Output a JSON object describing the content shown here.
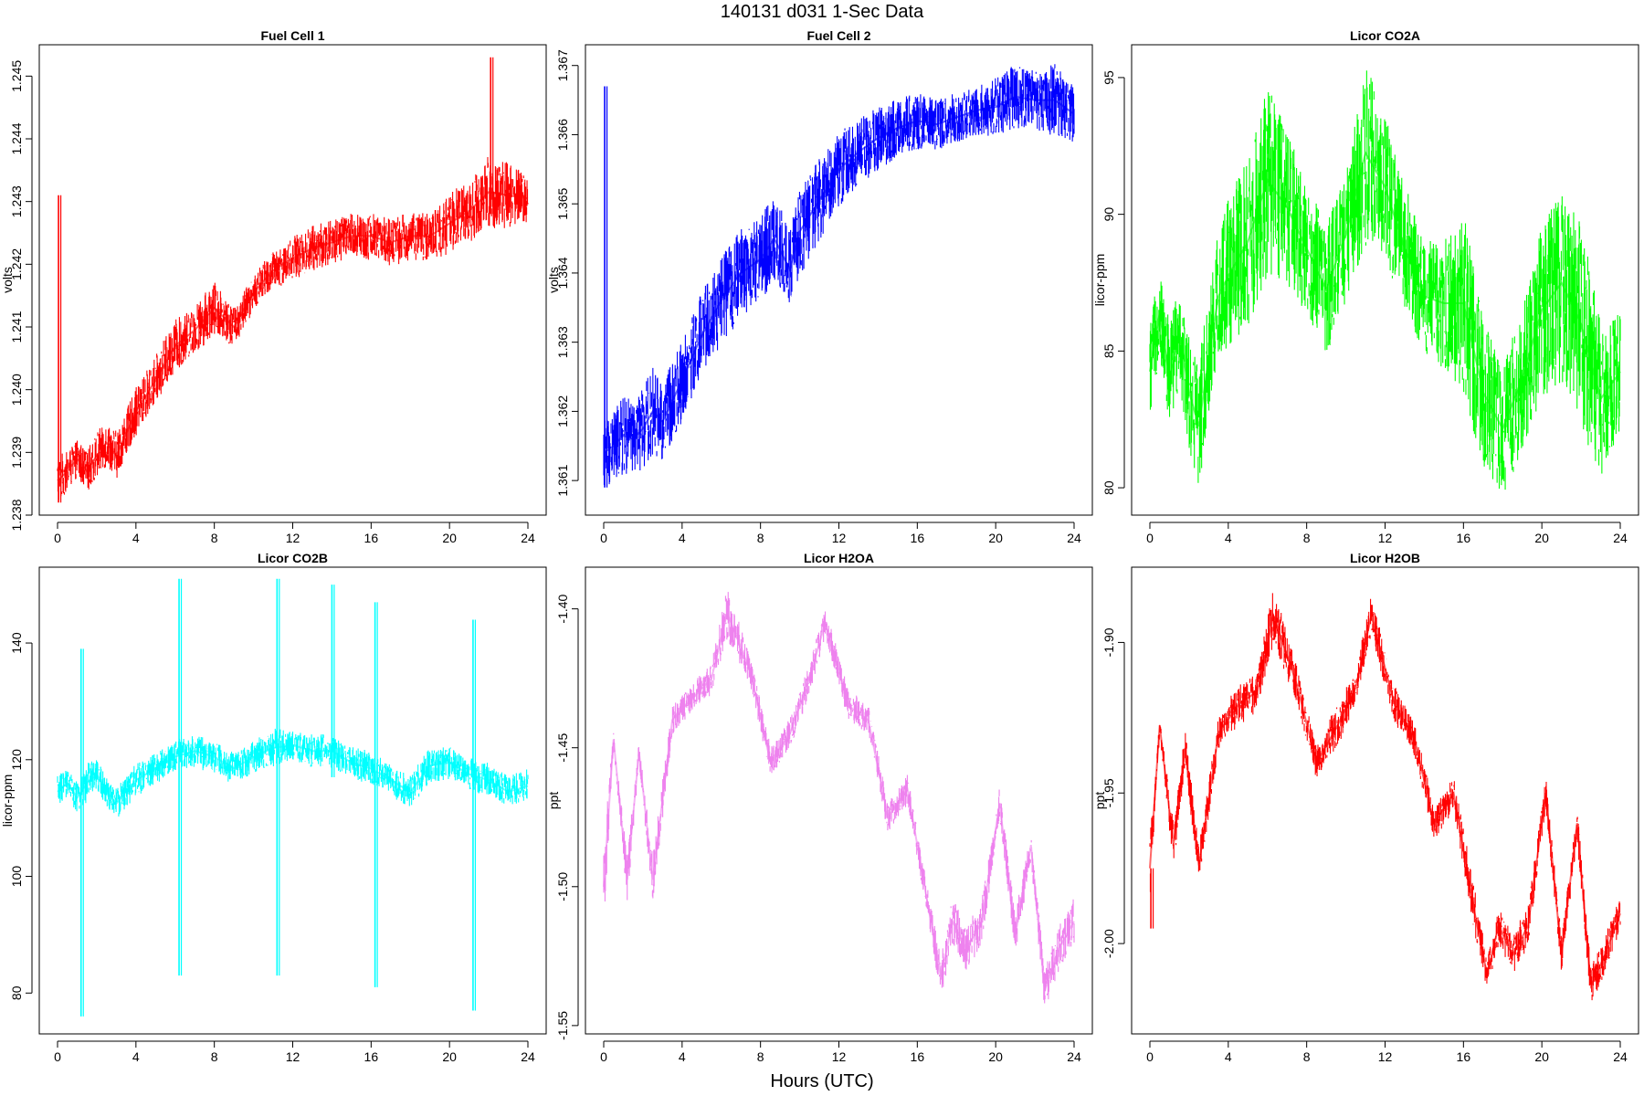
{
  "figure": {
    "title": "140131   d031   1-Sec Data",
    "xlabel": "Hours (UTC)"
  },
  "chart_data": [
    {
      "type": "line",
      "title": "Fuel Cell 1",
      "ylabel": "volts",
      "color": "#ff0000",
      "xlim": [
        0,
        24
      ],
      "ylim": [
        1.238,
        1.2455
      ],
      "xticks": [
        0,
        4,
        8,
        12,
        16,
        20,
        24
      ],
      "xtick_labels": [
        "0",
        "4",
        "8",
        "12",
        "16",
        "20",
        "24"
      ],
      "yticks": [
        1.238,
        1.239,
        1.24,
        1.241,
        1.242,
        1.243,
        1.244,
        1.245
      ],
      "ytick_labels": [
        "1.238",
        "1.239",
        "1.240",
        "1.241",
        "1.242",
        "1.243",
        "1.244",
        "1.245"
      ],
      "series": [
        {
          "x": [
            0,
            0.5,
            1,
            1.5,
            2,
            2.5,
            3,
            4,
            5,
            6,
            7,
            8,
            9,
            10,
            11,
            12,
            13,
            14,
            15,
            16,
            17,
            18,
            19,
            20,
            21,
            22,
            23,
            24
          ],
          "low": [
            1.2382,
            1.2384,
            1.2386,
            1.2384,
            1.2386,
            1.2388,
            1.2386,
            1.2393,
            1.2398,
            1.2403,
            1.2406,
            1.2409,
            1.2407,
            1.2413,
            1.2416,
            1.2418,
            1.2419,
            1.242,
            1.2421,
            1.2421,
            1.242,
            1.2421,
            1.2421,
            1.2422,
            1.2424,
            1.2426,
            1.2426,
            1.2427
          ],
          "high": [
            1.2389,
            1.239,
            1.2392,
            1.239,
            1.2393,
            1.2395,
            1.2393,
            1.24,
            1.2405,
            1.2411,
            1.2413,
            1.2417,
            1.2413,
            1.2418,
            1.2422,
            1.2424,
            1.2426,
            1.2427,
            1.2428,
            1.2428,
            1.2427,
            1.2428,
            1.2428,
            1.2431,
            1.2433,
            1.2437,
            1.2436,
            1.2434
          ]
        }
      ],
      "spikes": [
        {
          "x": 0.05,
          "low": 1.2382,
          "high": 1.2431
        },
        {
          "x": 22.1,
          "low": 1.2428,
          "high": 1.2453
        }
      ]
    },
    {
      "type": "line",
      "title": "Fuel Cell 2",
      "ylabel": "volts",
      "color": "#0000ff",
      "xlim": [
        0,
        24
      ],
      "ylim": [
        1.3605,
        1.3673
      ],
      "xticks": [
        0,
        4,
        8,
        12,
        16,
        20,
        24
      ],
      "xtick_labels": [
        "0",
        "4",
        "8",
        "12",
        "16",
        "20",
        "24"
      ],
      "yticks": [
        1.361,
        1.362,
        1.363,
        1.364,
        1.365,
        1.366,
        1.367
      ],
      "ytick_labels": [
        "1.361",
        "1.362",
        "1.363",
        "1.364",
        "1.365",
        "1.366",
        "1.367"
      ],
      "series": [
        {
          "x": [
            0,
            0.5,
            1,
            1.5,
            2,
            2.5,
            3,
            4,
            5,
            6,
            7,
            8,
            8.7,
            9.5,
            10,
            11,
            12,
            13,
            14,
            15,
            16,
            17,
            18,
            19,
            20,
            21,
            22,
            23,
            24
          ],
          "low": [
            1.3609,
            1.361,
            1.3611,
            1.3611,
            1.3612,
            1.3614,
            1.3613,
            1.3619,
            1.3625,
            1.363,
            1.3634,
            1.3636,
            1.3639,
            1.3635,
            1.364,
            1.3645,
            1.365,
            1.3653,
            1.3655,
            1.3657,
            1.3658,
            1.3658,
            1.3659,
            1.366,
            1.366,
            1.3661,
            1.3661,
            1.366,
            1.3659
          ],
          "high": [
            1.3619,
            1.362,
            1.3622,
            1.3621,
            1.3623,
            1.3626,
            1.3624,
            1.363,
            1.3637,
            1.3642,
            1.3646,
            1.3648,
            1.3651,
            1.3646,
            1.3652,
            1.3656,
            1.366,
            1.3662,
            1.3664,
            1.3665,
            1.3666,
            1.3665,
            1.3666,
            1.3667,
            1.3668,
            1.367,
            1.3669,
            1.367,
            1.3667
          ]
        }
      ],
      "spikes": [
        {
          "x": 0.05,
          "low": 1.3609,
          "high": 1.3667
        }
      ]
    },
    {
      "type": "line",
      "title": "Licor CO2A",
      "ylabel": "licor-ppm",
      "color": "#00ff00",
      "xlim": [
        0,
        24
      ],
      "ylim": [
        79,
        96.2
      ],
      "xticks": [
        0,
        4,
        8,
        12,
        16,
        20,
        24
      ],
      "xtick_labels": [
        "0",
        "4",
        "8",
        "12",
        "16",
        "20",
        "24"
      ],
      "yticks": [
        80,
        85,
        90,
        95
      ],
      "ytick_labels": [
        "80",
        "85",
        "90",
        "95"
      ],
      "series": [
        {
          "x": [
            0,
            0.5,
            1,
            1.5,
            2,
            2.5,
            3,
            3.5,
            4,
            5,
            6,
            7,
            8,
            9,
            10,
            11,
            12,
            13,
            14,
            15,
            16,
            17,
            18,
            19,
            20,
            21,
            22,
            23,
            24
          ],
          "low": [
            82.5,
            85.0,
            82.0,
            84.0,
            81.5,
            80.0,
            82.5,
            84.5,
            85.0,
            86.0,
            88.0,
            87.5,
            86.5,
            85.0,
            87.0,
            89.0,
            88.5,
            86.5,
            85.0,
            84.5,
            83.5,
            81.0,
            79.8,
            81.5,
            83.5,
            84.0,
            82.5,
            80.5,
            82.0
          ],
          "high": [
            86.0,
            87.8,
            86.0,
            87.5,
            85.5,
            84.5,
            87.0,
            89.5,
            90.5,
            92.0,
            94.5,
            93.0,
            91.0,
            89.5,
            91.5,
            95.5,
            93.5,
            91.0,
            89.0,
            89.0,
            90.0,
            86.0,
            84.5,
            86.5,
            89.5,
            91.0,
            89.5,
            86.0,
            86.5
          ]
        }
      ],
      "spikes": []
    },
    {
      "type": "line",
      "title": "Licor CO2B",
      "ylabel": "licor-ppm",
      "color": "#00ffff",
      "xlim": [
        0,
        24
      ],
      "ylim": [
        73,
        153
      ],
      "xticks": [
        0,
        4,
        8,
        12,
        16,
        20,
        24
      ],
      "xtick_labels": [
        "0",
        "4",
        "8",
        "12",
        "16",
        "20",
        "24"
      ],
      "yticks": [
        80,
        100,
        120,
        140
      ],
      "ytick_labels": [
        "80",
        "100",
        "120",
        "140"
      ],
      "series": [
        {
          "x": [
            0,
            0.5,
            1,
            1.5,
            2,
            2.5,
            3,
            4,
            5,
            6,
            7,
            8,
            9,
            10,
            11,
            12,
            13,
            14,
            15,
            16,
            17,
            18,
            19,
            20,
            21,
            22,
            23,
            24
          ],
          "low": [
            112,
            114,
            111,
            113,
            115,
            112,
            110,
            114,
            116,
            118,
            119,
            118,
            116,
            118,
            119,
            120,
            119,
            119,
            117,
            116,
            114,
            112,
            116,
            117,
            115,
            114,
            112,
            113
          ],
          "high": [
            117,
            118,
            116,
            119,
            120,
            117,
            115,
            119,
            121,
            123,
            124,
            123,
            121,
            123,
            125,
            125,
            124,
            124,
            122,
            121,
            119,
            117,
            122,
            122,
            120,
            119,
            117,
            118
          ]
        }
      ],
      "spikes": [
        {
          "x": 1.2,
          "low": 76,
          "high": 139
        },
        {
          "x": 6.2,
          "low": 83,
          "high": 151
        },
        {
          "x": 11.2,
          "low": 83,
          "high": 151
        },
        {
          "x": 14.0,
          "low": 117,
          "high": 150
        },
        {
          "x": 16.2,
          "low": 81,
          "high": 147
        },
        {
          "x": 21.2,
          "low": 77,
          "high": 144
        }
      ]
    },
    {
      "type": "line",
      "title": "Licor H2OA",
      "ylabel": "ppt",
      "color": "#ee82ee",
      "xlim": [
        0,
        24
      ],
      "ylim": [
        -1.553,
        -1.385
      ],
      "xticks": [
        0,
        4,
        8,
        12,
        16,
        20,
        24
      ],
      "xtick_labels": [
        "0",
        "4",
        "8",
        "12",
        "16",
        "20",
        "24"
      ],
      "yticks": [
        -1.55,
        -1.5,
        -1.45,
        -1.4
      ],
      "ytick_labels": [
        "-1.55",
        "-1.50",
        "-1.45",
        "-1.40"
      ],
      "series": [
        {
          "x": [
            0,
            0.5,
            1.2,
            1.8,
            2.5,
            3.5,
            4.5,
            5.5,
            6.3,
            7.5,
            8.5,
            9.5,
            10.5,
            11.3,
            12.5,
            13.5,
            14.5,
            15.5,
            16.5,
            17.2,
            17.8,
            18.5,
            19.3,
            20.2,
            21,
            21.8,
            22.5,
            23.2,
            24
          ],
          "low": [
            -1.515,
            -1.45,
            -1.505,
            -1.455,
            -1.505,
            -1.445,
            -1.437,
            -1.43,
            -1.41,
            -1.428,
            -1.46,
            -1.45,
            -1.43,
            -1.41,
            -1.44,
            -1.445,
            -1.48,
            -1.47,
            -1.51,
            -1.54,
            -1.52,
            -1.53,
            -1.52,
            -1.475,
            -1.525,
            -1.49,
            -1.545,
            -1.53,
            -1.52
          ],
          "high": [
            -1.485,
            -1.444,
            -1.49,
            -1.448,
            -1.49,
            -1.435,
            -1.428,
            -1.42,
            -1.393,
            -1.418,
            -1.45,
            -1.44,
            -1.42,
            -1.4,
            -1.43,
            -1.435,
            -1.47,
            -1.46,
            -1.5,
            -1.525,
            -1.505,
            -1.515,
            -1.505,
            -1.465,
            -1.51,
            -1.48,
            -1.53,
            -1.515,
            -1.505
          ]
        }
      ],
      "spikes": []
    },
    {
      "type": "line",
      "title": "Licor H2OB",
      "ylabel": "ppt",
      "color": "#ff0000",
      "xlim": [
        0,
        24
      ],
      "ylim": [
        -2.03,
        -1.875
      ],
      "xticks": [
        0,
        4,
        8,
        12,
        16,
        20,
        24
      ],
      "xtick_labels": [
        "0",
        "4",
        "8",
        "12",
        "16",
        "20",
        "24"
      ],
      "yticks": [
        -2.0,
        -1.95,
        -1.9
      ],
      "ytick_labels": [
        "-2.00",
        "-1.95",
        "-1.90"
      ],
      "series": [
        {
          "x": [
            0,
            0.5,
            1.2,
            1.8,
            2.5,
            3.5,
            4.5,
            5.5,
            6.3,
            7.5,
            8.5,
            9.5,
            10.5,
            11.3,
            12.5,
            13.5,
            14.5,
            15.5,
            16.5,
            17.2,
            17.8,
            18.5,
            19.3,
            20.2,
            21,
            21.8,
            22.5,
            23.2,
            24
          ],
          "low": [
            -1.985,
            -1.93,
            -1.975,
            -1.94,
            -1.98,
            -1.935,
            -1.927,
            -1.922,
            -1.9,
            -1.92,
            -1.945,
            -1.935,
            -1.92,
            -1.897,
            -1.927,
            -1.937,
            -1.965,
            -1.955,
            -1.995,
            -2.015,
            -2.0,
            -2.01,
            -2.0,
            -1.955,
            -2.01,
            -1.965,
            -2.02,
            -2.01,
            -1.995
          ],
          "high": [
            -1.965,
            -1.925,
            -1.96,
            -1.93,
            -1.968,
            -1.925,
            -1.915,
            -1.91,
            -1.882,
            -1.908,
            -1.935,
            -1.922,
            -1.91,
            -1.885,
            -1.915,
            -1.927,
            -1.955,
            -1.945,
            -1.98,
            -2.005,
            -1.988,
            -1.998,
            -1.988,
            -1.945,
            -1.998,
            -1.955,
            -2.008,
            -1.998,
            -1.985
          ]
        }
      ],
      "spikes": [
        {
          "x": 0.05,
          "low": -1.995,
          "high": -1.975
        }
      ]
    }
  ]
}
